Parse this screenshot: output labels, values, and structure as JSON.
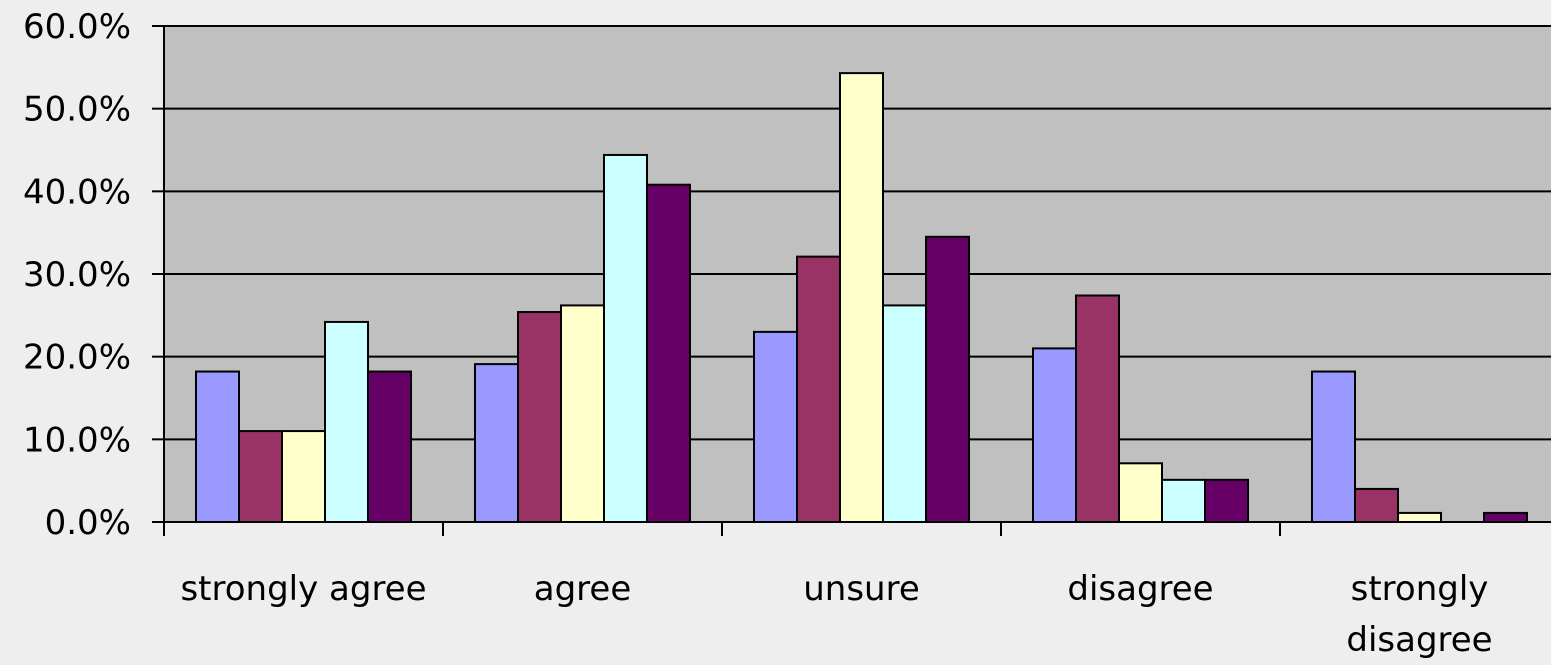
{
  "chart_data": {
    "type": "bar",
    "title": "",
    "xlabel": "",
    "ylabel": "",
    "ylim": [
      0,
      60
    ],
    "y_tick_labels": [
      "0.0%",
      "10.0%",
      "20.0%",
      "30.0%",
      "40.0%",
      "50.0%",
      "60.0%"
    ],
    "y_ticks": [
      0,
      10,
      20,
      30,
      40,
      50,
      60
    ],
    "categories": [
      "strongly agree",
      "agree",
      "unsure",
      "disagree",
      "strongly disagree"
    ],
    "category_lines": [
      [
        "strongly agree"
      ],
      [
        "agree"
      ],
      [
        "unsure"
      ],
      [
        "disagree"
      ],
      [
        "strongly",
        "disagree"
      ]
    ],
    "grid": true,
    "legend": "none",
    "plot_background": "#c0c0c0",
    "series": [
      {
        "color": "#9999ff",
        "values": [
          18.2,
          19.1,
          23.0,
          21.0,
          18.2
        ]
      },
      {
        "color": "#993366",
        "values": [
          11.0,
          25.4,
          32.1,
          27.4,
          4.0
        ]
      },
      {
        "color": "#ffffcc",
        "values": [
          11.0,
          26.2,
          54.3,
          7.1,
          1.1
        ]
      },
      {
        "color": "#ccffff",
        "values": [
          24.2,
          44.4,
          26.2,
          5.1,
          0.0
        ]
      },
      {
        "color": "#660066",
        "values": [
          18.2,
          40.8,
          34.5,
          5.1,
          1.1
        ]
      }
    ]
  }
}
